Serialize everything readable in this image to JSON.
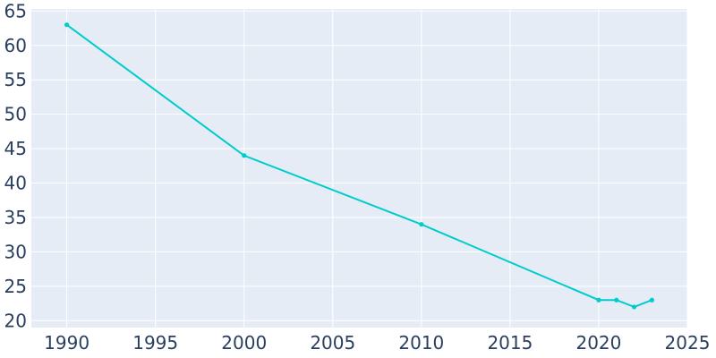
{
  "chart_data": {
    "type": "line",
    "title": "",
    "xlabel": "",
    "ylabel": "",
    "xlim": [
      1988,
      2025
    ],
    "ylim": [
      19,
      65.3
    ],
    "x_ticks": [
      1990,
      1995,
      2000,
      2005,
      2010,
      2015,
      2020,
      2025
    ],
    "y_ticks": [
      20,
      25,
      30,
      35,
      40,
      45,
      50,
      55,
      60,
      65
    ],
    "grid": true,
    "legend": "none",
    "series": [
      {
        "x": [
          1990,
          2000,
          2010,
          2020,
          2021,
          2022,
          2023
        ],
        "y": [
          63,
          44,
          34,
          23,
          23,
          22,
          23
        ]
      }
    ]
  },
  "colors": {
    "plot_background": "#e5ecf6",
    "grid": "#ffffff",
    "line": "#00cccc",
    "tick_text": "#2a3f5f"
  }
}
